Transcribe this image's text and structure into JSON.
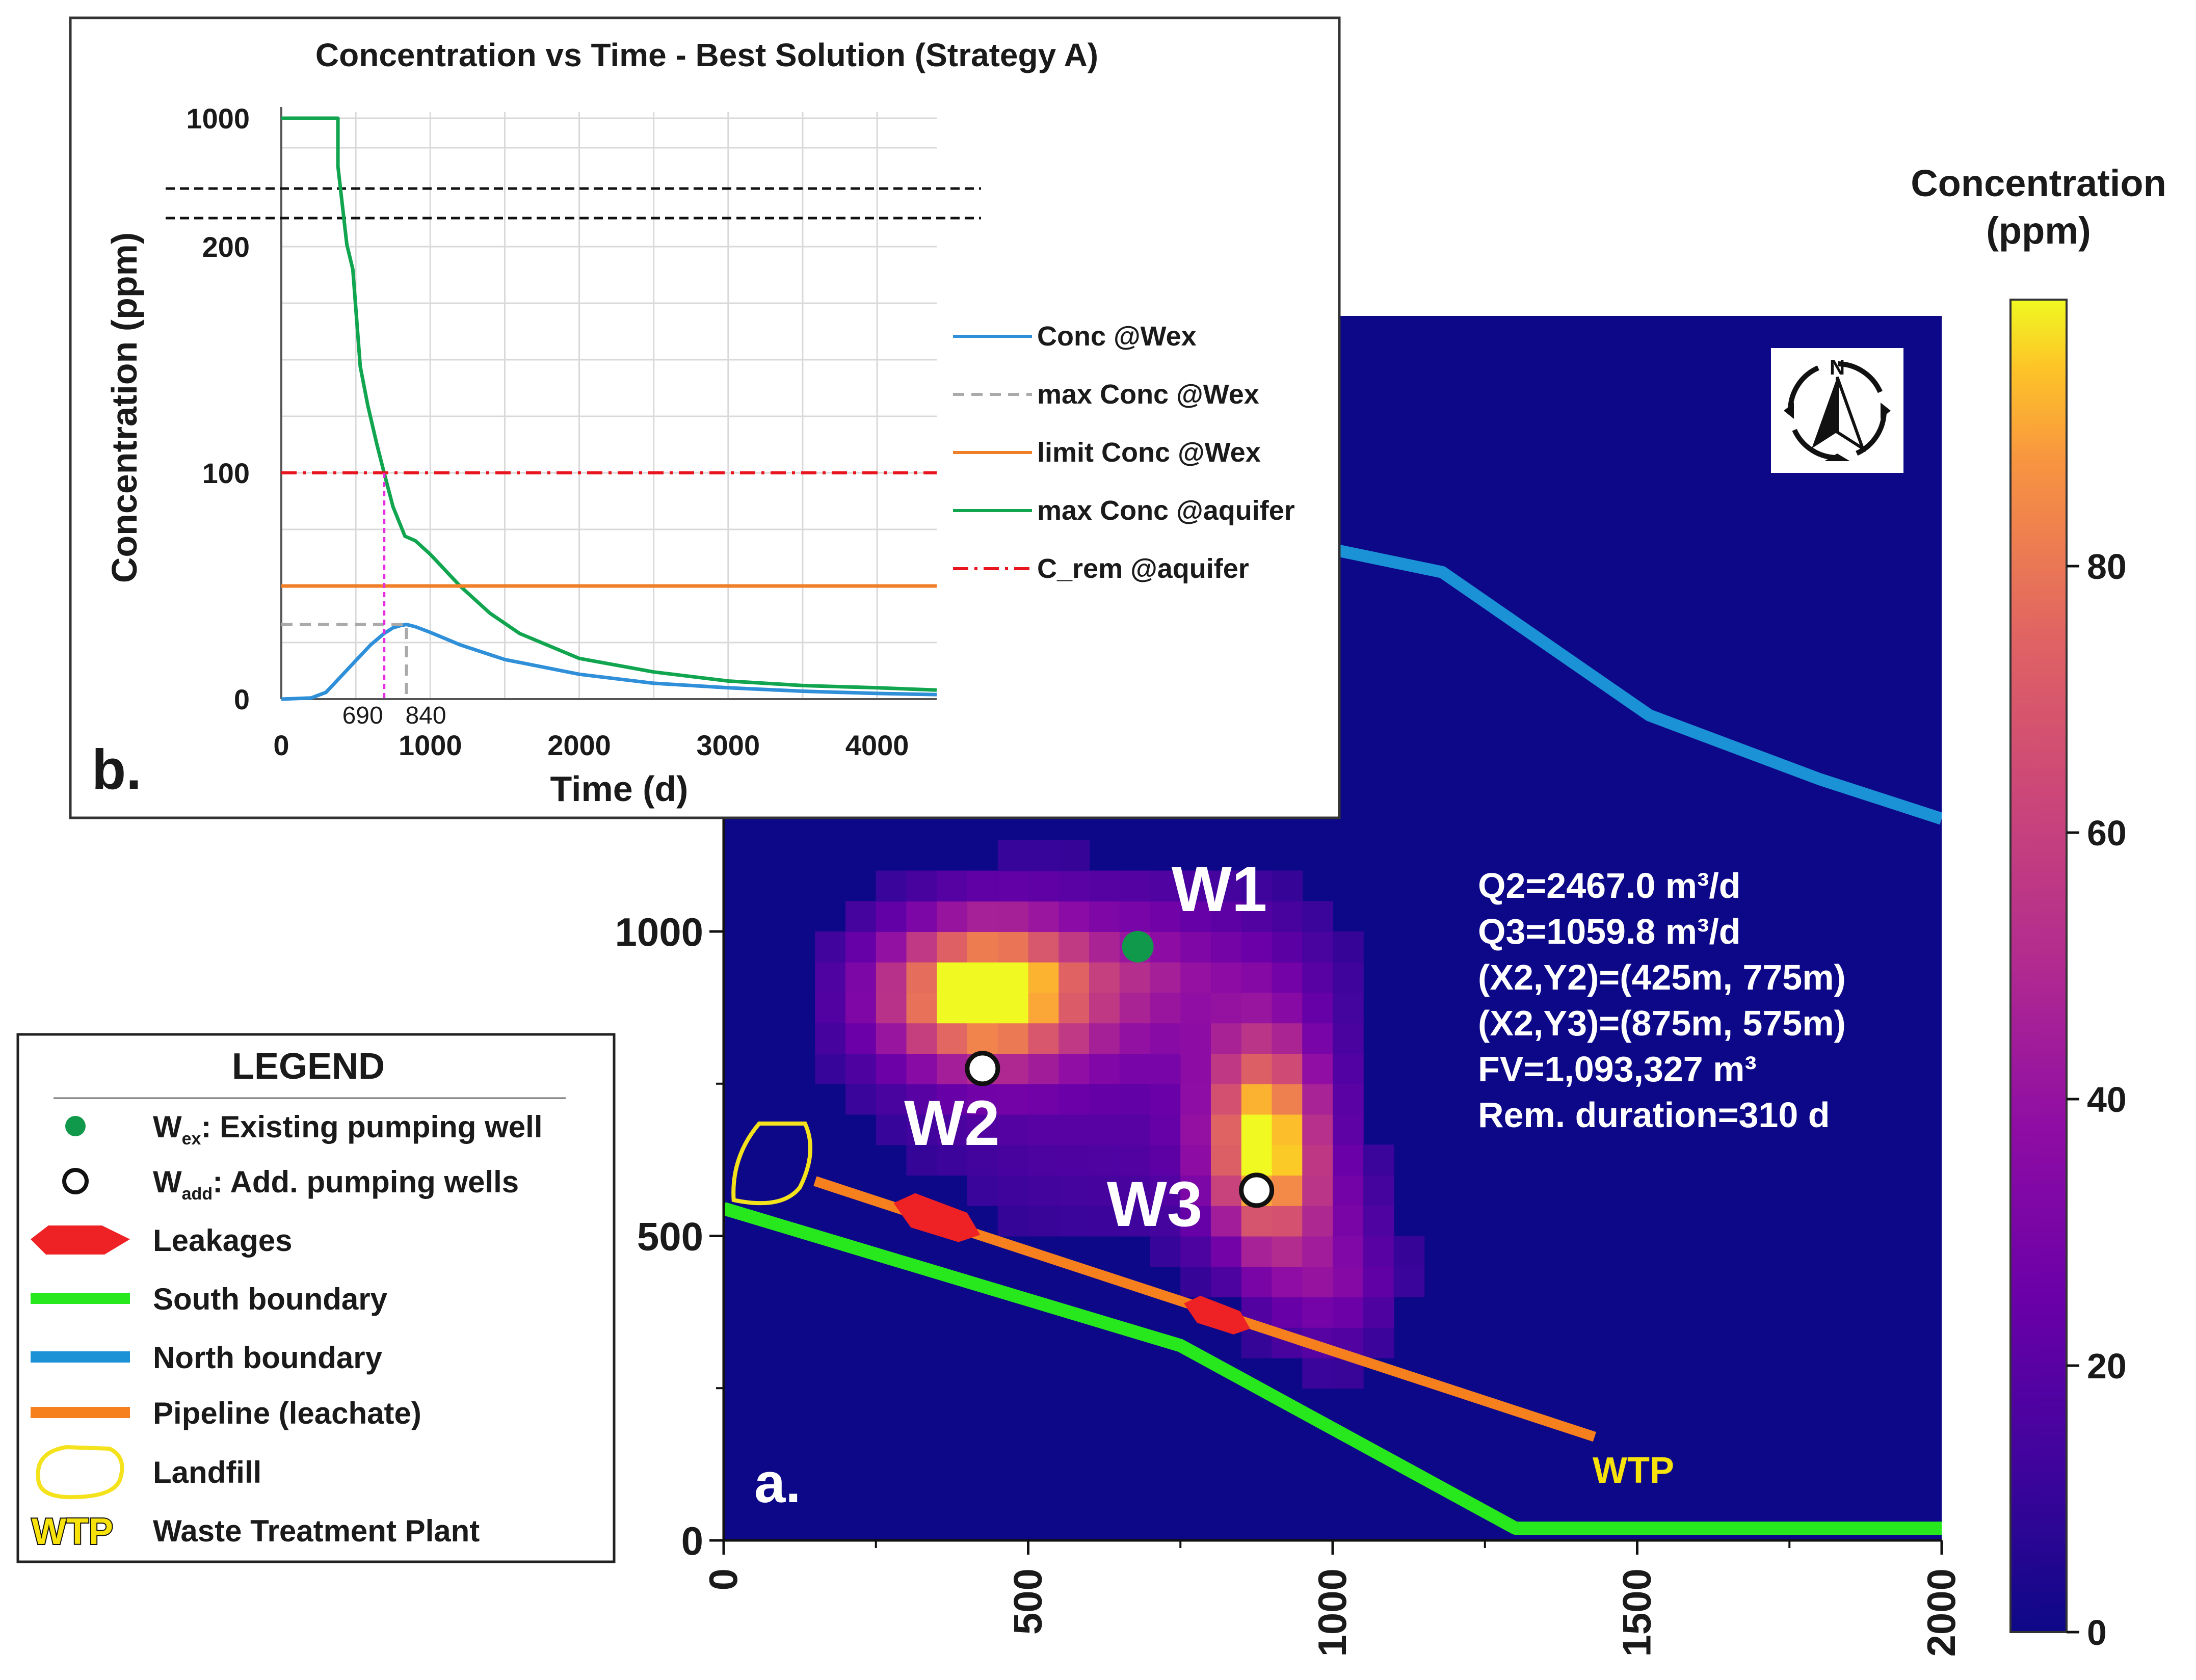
{
  "chart_data": [
    {
      "id": "a",
      "type": "heatmap",
      "panel_label": "a.",
      "title": "",
      "xlabel": "",
      "ylabel": "",
      "xlim": [
        0,
        2000
      ],
      "ylim": [
        0,
        2000
      ],
      "x_ticks": [
        0,
        500,
        1000,
        1500,
        2000
      ],
      "y_ticks": [
        0,
        500,
        1000
      ],
      "x_tick_labels": [
        "0",
        "500",
        "1000",
        "1500",
        "2000"
      ],
      "y_tick_labels": [
        "0",
        "500",
        "1000"
      ],
      "plume_hotspots": [
        {
          "x": 420,
          "y": 900,
          "conc": 95
        },
        {
          "x": 890,
          "y": 650,
          "conc": 95
        }
      ],
      "wells": [
        {
          "id": "W1",
          "label": "W1",
          "type": "existing",
          "x": 680,
          "y": 975
        },
        {
          "id": "W2",
          "label": "W2",
          "type": "added",
          "x": 425,
          "y": 775
        },
        {
          "id": "W3",
          "label": "W3",
          "type": "added",
          "x": 875,
          "y": 575
        }
      ],
      "south_boundary": [
        [
          0,
          545
        ],
        [
          750,
          320
        ],
        [
          1300,
          20
        ],
        [
          2000,
          20
        ]
      ],
      "north_boundary": [
        [
          650,
          1700
        ],
        [
          1180,
          1590
        ],
        [
          1520,
          1355
        ],
        [
          1800,
          1250
        ],
        [
          2000,
          1185
        ]
      ],
      "pipeline": [
        [
          150,
          590
        ],
        [
          1430,
          170
        ]
      ],
      "leakages": [
        [
          350,
          530
        ],
        [
          810,
          370
        ]
      ],
      "landfill": [
        75,
        605
      ],
      "wtp_label": "WTP",
      "wtp_position": [
        1430,
        120
      ],
      "annotations": [
        "Q2=2467.0 m³/d",
        "Q3=1059.8 m³/d",
        "(X2,Y2)=(425m, 775m)",
        "(X2,Y3)=(875m, 575m)",
        "FV=1,093,327 m³",
        "Rem. duration=310 d"
      ]
    },
    {
      "id": "b",
      "type": "line",
      "panel_label": "b.",
      "title": "Concentration vs Time - Best Solution (Strategy A)",
      "xlabel": "Time (d)",
      "ylabel": "Concentration (ppm)",
      "xlim": [
        0,
        4400
      ],
      "ylim": [
        0,
        1000
      ],
      "axis_break": true,
      "y_ticks": [
        0,
        100,
        200,
        1000
      ],
      "y_tick_labels": [
        "0",
        "100",
        "200",
        "1000"
      ],
      "x_ticks": [
        0,
        1000,
        2000,
        3000,
        4000
      ],
      "x_tick_labels": [
        "0",
        "1000",
        "2000",
        "3000",
        "4000"
      ],
      "markers": [
        {
          "x": 690,
          "label": "690"
        },
        {
          "x": 840,
          "label": "840"
        }
      ],
      "grid": true,
      "legend_position": "right",
      "series": [
        {
          "name": "Conc @Wex",
          "style": "solid",
          "color": "#2f8fd8",
          "x": [
            0,
            200,
            300,
            400,
            500,
            600,
            690,
            750,
            800,
            840,
            900,
            1000,
            1200,
            1500,
            2000,
            2500,
            3000,
            3500,
            4000,
            4400
          ],
          "y": [
            0,
            0.5,
            3,
            10,
            17,
            24,
            29,
            31.5,
            32.5,
            33,
            32,
            29.5,
            24,
            17.5,
            11,
            7,
            5,
            3.5,
            2.5,
            2
          ]
        },
        {
          "name": "max Conc @Wex",
          "style": "dashed",
          "color": "#aaaaaa",
          "x": [
            0,
            840,
            840
          ],
          "y": [
            33,
            33,
            0
          ]
        },
        {
          "name": "limit Conc @Wex",
          "style": "solid",
          "color": "#f07f2a",
          "x": [
            0,
            4400
          ],
          "y": [
            50,
            50
          ]
        },
        {
          "name": "max Conc @aquifer",
          "style": "solid",
          "color": "#12a550",
          "x": [
            0,
            380,
            380,
            440,
            480,
            530,
            580,
            640,
            690,
            750,
            830,
            900,
            1000,
            1200,
            1400,
            1600,
            2000,
            2500,
            3000,
            3500,
            4000,
            4400
          ],
          "y": [
            1000,
            1000,
            700,
            212,
            190,
            147,
            130,
            113,
            100,
            85,
            72,
            70,
            64,
            50,
            38,
            29,
            18,
            12,
            8,
            6,
            5,
            4
          ]
        },
        {
          "name": "C_rem @aquifer",
          "style": "dashdot",
          "color": "#e8141e",
          "x": [
            0,
            4400
          ],
          "y": [
            100,
            100
          ]
        }
      ]
    }
  ],
  "colorbar": {
    "title_line1": "Concentration",
    "title_line2": "(ppm)",
    "min": 0,
    "max": 100,
    "ticks": [
      0,
      20,
      40,
      60,
      80
    ],
    "tick_labels": [
      "0",
      "20",
      "40",
      "60",
      "80"
    ],
    "colormap": "plasma"
  },
  "legend": {
    "title": "LEGEND",
    "items": [
      {
        "key": "existing-well",
        "label_main": "W",
        "label_sub": "ex",
        "label_rest": ": Existing pumping well"
      },
      {
        "key": "added-well",
        "label_main": "W",
        "label_sub": "add",
        "label_rest": ": Add. pumping wells"
      },
      {
        "key": "leakages",
        "label": "Leakages"
      },
      {
        "key": "south-boundary",
        "label": "South boundary"
      },
      {
        "key": "north-boundary",
        "label": "North boundary"
      },
      {
        "key": "pipeline",
        "label": "Pipeline (leachate)"
      },
      {
        "key": "landfill",
        "label": "Landfill"
      },
      {
        "key": "wtp",
        "symbol_text": "WTP",
        "label": "Waste Treatment Plant"
      }
    ]
  },
  "colors": {
    "map_background": "#0d0887",
    "existing_well": "#10994a",
    "south_boundary": "#27e81d",
    "north_boundary": "#1b91d6",
    "pipeline": "#f7801e",
    "leakage": "#ee2125",
    "landfill": "#f4e21c",
    "wtp_text": "#f7e20c"
  }
}
